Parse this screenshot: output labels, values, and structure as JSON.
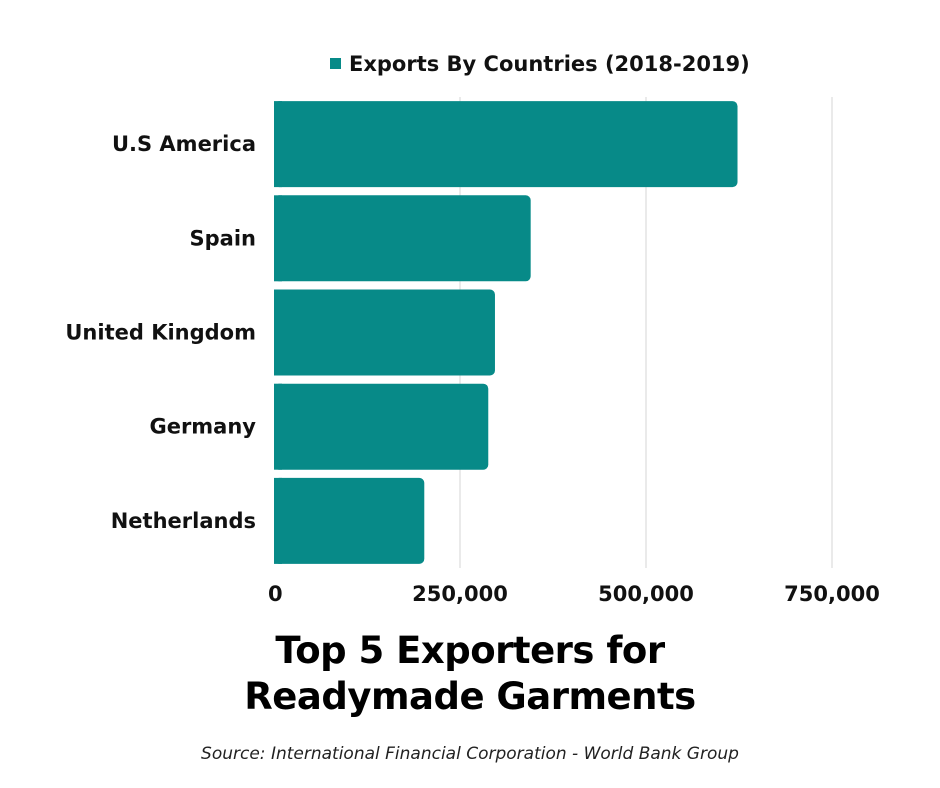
{
  "chart_data": {
    "type": "bar",
    "orientation": "horizontal",
    "title": "Top 5 Exporters for\nReadymade Garments",
    "source": "Source: International Financial Corporation - World Bank Group",
    "categories": [
      "U.S America",
      "Spain",
      "United Kingdom",
      "Germany",
      "Netherlands"
    ],
    "series": [
      {
        "name": "Exports By Countries (2018-2019)",
        "values": [
          623000,
          345000,
          297000,
          288000,
          202000
        ],
        "color": "#078a88"
      }
    ],
    "xlim": [
      0,
      750000
    ],
    "xticks": [
      0,
      250000,
      500000,
      750000
    ],
    "xtick_labels": [
      "0",
      "250,000",
      "500,000",
      "750,000"
    ],
    "grid": true,
    "legend_position": "top"
  }
}
